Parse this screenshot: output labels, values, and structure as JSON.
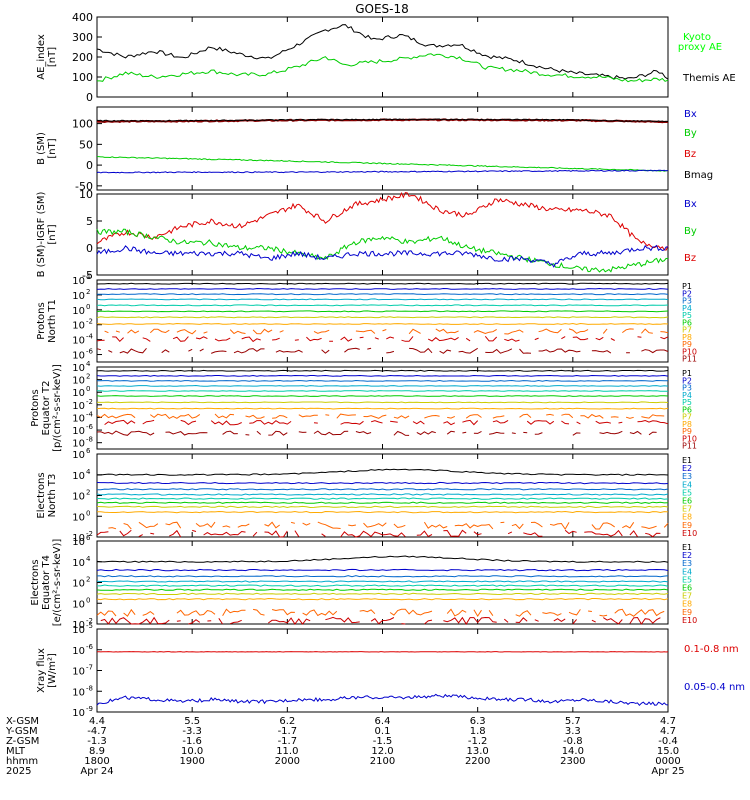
{
  "title": "GOES-18",
  "colors": {
    "black": "#000000",
    "green": "#00cc00",
    "blue": "#0000cc",
    "red": "#dd0000",
    "darkred": "#8b0000",
    "bright_green": "#00ff00",
    "p_colors": [
      "#000000",
      "#660066",
      "#0000cc",
      "#0066cc",
      "#00aacc",
      "#00ccaa",
      "#00cc00",
      "#cccc00",
      "#ffaa00",
      "#ff6600",
      "#cc0000",
      "#990000"
    ]
  },
  "chart_data": [
    {
      "type": "line",
      "panel": "ae",
      "ylabel": "AE_index [nT]",
      "ylim": [
        0,
        400
      ],
      "yticks": [
        "400",
        "300",
        "200",
        "100",
        "0"
      ],
      "legend": [
        {
          "name": "Kyoto proxy AE",
          "color": "#00cc00"
        },
        {
          "name": "Themis AE",
          "color": "#000000"
        }
      ],
      "series": [
        {
          "name": "Themis AE",
          "color": "#000000",
          "x": [
            18.0,
            18.3,
            18.6,
            18.9,
            19.2,
            19.5,
            19.8,
            20.1,
            20.4,
            20.6,
            20.9,
            21.2,
            21.5,
            21.8,
            22.1,
            22.4,
            22.7,
            23.0,
            23.3,
            23.6,
            23.9,
            24.0
          ],
          "y": [
            240,
            200,
            230,
            195,
            250,
            215,
            190,
            260,
            335,
            360,
            285,
            310,
            255,
            265,
            205,
            185,
            145,
            120,
            105,
            90,
            130,
            95
          ]
        },
        {
          "name": "Kyoto proxy AE",
          "color": "#00cc00",
          "x": [
            18.0,
            18.3,
            18.6,
            18.9,
            19.2,
            19.5,
            19.8,
            20.1,
            20.4,
            20.6,
            20.9,
            21.2,
            21.5,
            21.8,
            22.1,
            22.4,
            22.7,
            23.0,
            23.3,
            23.6,
            23.9,
            24.0
          ],
          "y": [
            80,
            120,
            100,
            115,
            130,
            110,
            115,
            150,
            200,
            160,
            175,
            190,
            215,
            200,
            145,
            135,
            115,
            105,
            100,
            80,
            90,
            85
          ]
        }
      ]
    },
    {
      "type": "line",
      "panel": "bsm",
      "ylabel": "B (SM) [nT]",
      "ylim": [
        -60,
        140
      ],
      "yticks": [
        "150",
        "100",
        "50",
        "0",
        "-50"
      ],
      "legend": [
        {
          "name": "Bx",
          "color": "#0000cc"
        },
        {
          "name": "By",
          "color": "#00cc00"
        },
        {
          "name": "Bz",
          "color": "#dd0000"
        },
        {
          "name": "Bmag",
          "color": "#000000"
        }
      ],
      "series": [
        {
          "name": "Bz",
          "color": "#dd0000",
          "x": [
            18,
            19,
            20,
            21,
            22,
            23,
            24
          ],
          "y": [
            105,
            106,
            108,
            109,
            109,
            108,
            104
          ]
        },
        {
          "name": "Bmag",
          "color": "#000000",
          "x": [
            18,
            19,
            20,
            21,
            22,
            23,
            24
          ],
          "y": [
            107,
            107,
            109,
            110,
            110,
            109,
            105
          ]
        },
        {
          "name": "By",
          "color": "#00cc00",
          "x": [
            18,
            19,
            20,
            21,
            22,
            23,
            24
          ],
          "y": [
            20,
            15,
            10,
            4,
            -2,
            -8,
            -14
          ]
        },
        {
          "name": "Bx",
          "color": "#0000cc",
          "x": [
            18,
            19,
            20,
            21,
            22,
            23,
            24
          ],
          "y": [
            -18,
            -17,
            -17,
            -16,
            -15,
            -14,
            -13
          ]
        }
      ]
    },
    {
      "type": "line",
      "panel": "bigrf",
      "ylabel": "B (SM)-IGRF (SM) [nT]",
      "ylim": [
        -5,
        10
      ],
      "yticks": [
        "10",
        "5",
        "0",
        "-5"
      ],
      "legend": [
        {
          "name": "Bx",
          "color": "#0000cc"
        },
        {
          "name": "By",
          "color": "#00cc00"
        },
        {
          "name": "Bz",
          "color": "#dd0000"
        }
      ],
      "series": [
        {
          "name": "Bz",
          "color": "#dd0000",
          "x": [
            18.0,
            18.3,
            18.6,
            18.9,
            19.2,
            19.5,
            19.8,
            20.1,
            20.4,
            20.7,
            21.0,
            21.3,
            21.6,
            21.9,
            22.2,
            22.5,
            22.8,
            23.1,
            23.4,
            23.7,
            24.0
          ],
          "y": [
            1,
            3,
            2,
            4,
            5,
            4,
            6,
            8,
            5,
            8,
            9,
            10,
            7,
            6,
            9,
            8,
            7,
            7,
            6,
            1,
            0
          ]
        },
        {
          "name": "By",
          "color": "#00cc00",
          "x": [
            18.0,
            18.3,
            18.6,
            18.9,
            19.2,
            19.5,
            19.8,
            20.1,
            20.4,
            20.7,
            21.0,
            21.3,
            21.6,
            21.9,
            22.2,
            22.5,
            22.8,
            23.1,
            23.4,
            23.7,
            24.0
          ],
          "y": [
            3,
            3,
            2,
            1,
            1,
            0,
            0,
            -1,
            -2,
            1,
            2,
            1,
            2,
            0,
            -1,
            -2,
            -3,
            -4,
            -4,
            -3,
            -2
          ]
        },
        {
          "name": "Bx",
          "color": "#0000cc",
          "x": [
            18.0,
            18.3,
            18.6,
            18.9,
            19.2,
            19.5,
            19.8,
            20.1,
            20.4,
            20.7,
            21.0,
            21.3,
            21.6,
            21.9,
            22.2,
            22.5,
            22.8,
            23.1,
            23.4,
            23.7,
            24.0
          ],
          "y": [
            -1,
            0,
            -1,
            -1,
            -1,
            -1,
            -2,
            -1,
            -2,
            -1,
            -1,
            -1,
            -1,
            -1,
            -2,
            -2,
            -3,
            -1,
            -1,
            0,
            0
          ]
        }
      ]
    },
    {
      "type": "line",
      "panel": "pn",
      "ylabel": "Protons North T1",
      "yscale": "log",
      "ylim_exp": [
        -7,
        4
      ],
      "ytick_exps": [
        4,
        2,
        0,
        -2,
        -4,
        -6
      ],
      "legend_labels": [
        "P1",
        "P2",
        "P3",
        "P4",
        "P5",
        "P6",
        "P7",
        "P8",
        "P9",
        "P10",
        "P11"
      ],
      "levels_exp": [
        3.5,
        2.8,
        2.1,
        1.4,
        0.6,
        -0.2,
        -1.0,
        -1.9,
        -2.9,
        -3.9,
        -5.5
      ]
    },
    {
      "type": "line",
      "panel": "pe",
      "ylabel": "Protons Equator T2 [p/(cm²-s-sr-keV)]",
      "yscale": "log",
      "ylim_exp": [
        -9,
        4
      ],
      "ytick_exps": [
        4,
        2,
        0,
        -2,
        -4,
        -6,
        -8
      ],
      "legend_labels": [
        "P1",
        "P2",
        "P3",
        "P4",
        "P5",
        "P6",
        "P7",
        "P8",
        "P9",
        "P10",
        "P11"
      ],
      "levels_exp": [
        3.4,
        2.6,
        1.8,
        1.0,
        0.2,
        -0.6,
        -1.6,
        -2.6,
        -3.8,
        -4.8,
        -6.5
      ]
    },
    {
      "type": "line",
      "panel": "en",
      "ylabel": "Electrons North T3",
      "yscale": "log",
      "ylim_exp": [
        -2,
        6
      ],
      "ytick_exps": [
        6,
        4,
        2,
        0,
        -2
      ],
      "legend_labels": [
        "E1",
        "E2",
        "E3",
        "E4",
        "E5",
        "E6",
        "E7",
        "E8",
        "E9",
        "E10"
      ],
      "levels_exp": [
        4.0,
        3.2,
        2.6,
        2.1,
        1.7,
        1.3,
        0.9,
        0.4,
        -0.9,
        -1.7
      ]
    },
    {
      "type": "line",
      "panel": "ee",
      "ylabel": "Electrons Equator T4 [e/(cm²-s-sr-keV)]",
      "yscale": "log",
      "ylim_exp": [
        -2,
        6
      ],
      "ytick_exps": [
        6,
        4,
        2,
        0,
        -2
      ],
      "legend_labels": [
        "E1",
        "E2",
        "E3",
        "E4",
        "E5",
        "E6",
        "E7",
        "E8",
        "E9",
        "E10"
      ],
      "levels_exp": [
        4.0,
        3.2,
        2.6,
        2.1,
        1.7,
        1.3,
        0.9,
        0.4,
        -0.9,
        -1.7
      ]
    },
    {
      "type": "line",
      "panel": "xray",
      "ylabel": "Xray flux [W/m²]",
      "yscale": "log",
      "ylim_exp": [
        -9,
        -5
      ],
      "ytick_exps": [
        -5,
        -6,
        -7,
        -8,
        -9
      ],
      "legend": [
        {
          "name": "0.1-0.8 nm",
          "color": "#dd0000"
        },
        {
          "name": "0.05-0.4 nm",
          "color": "#0000cc"
        }
      ],
      "series": [
        {
          "name": "0.1-0.8 nm",
          "color": "#dd0000",
          "x": [
            18,
            19,
            20,
            21,
            22,
            23,
            24
          ],
          "y_exp": [
            -6.1,
            -6.1,
            -6.1,
            -6.1,
            -6.1,
            -6.1,
            -6.1
          ]
        },
        {
          "name": "0.05-0.4 nm",
          "color": "#0000cc",
          "x": [
            18.0,
            18.3,
            18.6,
            18.9,
            19.2,
            19.5,
            19.8,
            20.1,
            20.4,
            20.7,
            21.0,
            21.3,
            21.6,
            21.9,
            22.2,
            22.5,
            22.8,
            23.1,
            23.4,
            23.7,
            24.0
          ],
          "y_exp": [
            -8.6,
            -8.3,
            -8.4,
            -8.5,
            -8.4,
            -8.5,
            -8.5,
            -8.4,
            -8.4,
            -8.3,
            -8.3,
            -8.3,
            -8.2,
            -8.3,
            -8.4,
            -8.4,
            -8.5,
            -8.4,
            -8.5,
            -8.6,
            -8.6
          ]
        }
      ]
    }
  ],
  "x_axis": {
    "ticks_hours": [
      18,
      19,
      20,
      21,
      22,
      23,
      24
    ],
    "rows": [
      {
        "label": "X-GSM",
        "values": [
          "4.4",
          "5.5",
          "6.2",
          "6.4",
          "6.3",
          "5.7",
          "4.7"
        ]
      },
      {
        "label": "Y-GSM",
        "values": [
          "-4.7",
          "-3.3",
          "-1.7",
          "0.1",
          "1.8",
          "3.3",
          "4.7"
        ]
      },
      {
        "label": "Z-GSM",
        "values": [
          "-1.3",
          "-1.6",
          "-1.7",
          "-1.5",
          "-1.2",
          "-0.8",
          "-0.4"
        ]
      },
      {
        "label": "MLT",
        "values": [
          "8.9",
          "10.0",
          "11.0",
          "12.0",
          "13.0",
          "14.0",
          "15.0"
        ]
      },
      {
        "label": "hhmm",
        "values": [
          "1800",
          "1900",
          "2000",
          "2100",
          "2200",
          "2300",
          "0000"
        ]
      },
      {
        "label": "2025",
        "values": [
          "Apr 24",
          "",
          "",
          "",
          "",
          "",
          "Apr 25"
        ]
      }
    ]
  }
}
